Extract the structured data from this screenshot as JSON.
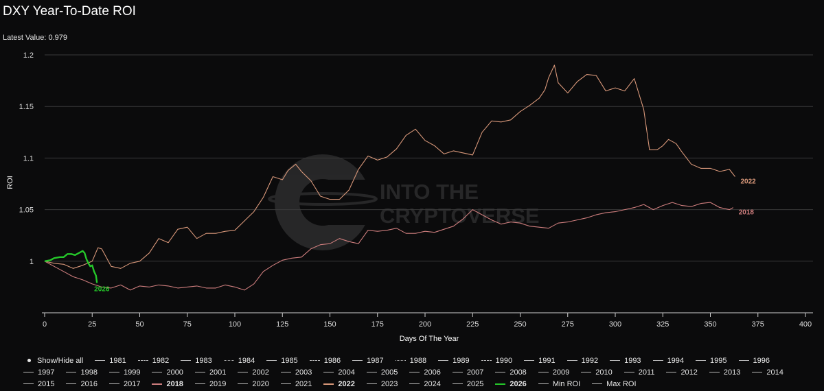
{
  "header": {
    "title": "DXY Year-To-Date ROI",
    "latest_value": "Latest Value: 0.979"
  },
  "watermark": {
    "line1": "INTO THE",
    "line2": "CRYPTOVERSE"
  },
  "chart_data": {
    "type": "line",
    "title": "DXY Year-To-Date ROI",
    "xlabel": "Days Of The Year",
    "ylabel": "ROI",
    "xlim": [
      0,
      400
    ],
    "ylim": [
      0.95,
      1.2
    ],
    "x_ticks": [
      "0",
      "25",
      "50",
      "75",
      "100",
      "125",
      "150",
      "175",
      "200",
      "225",
      "250",
      "275",
      "300",
      "325",
      "350",
      "375",
      "400"
    ],
    "y_ticks": [
      "1",
      "1.05",
      "1.1",
      "1.15",
      "1.2"
    ],
    "grid": "horizontal",
    "legend_position": "bottom",
    "series": [
      {
        "name": "2022",
        "color": "#d9987a",
        "label": "2022",
        "points": [
          [
            0,
            1.0
          ],
          [
            5,
            0.998
          ],
          [
            10,
            0.997
          ],
          [
            15,
            0.993
          ],
          [
            20,
            0.996
          ],
          [
            25,
            1.0
          ],
          [
            28,
            1.013
          ],
          [
            30,
            1.012
          ],
          [
            35,
            0.995
          ],
          [
            40,
            0.993
          ],
          [
            45,
            0.998
          ],
          [
            50,
            1.0
          ],
          [
            55,
            1.008
          ],
          [
            60,
            1.022
          ],
          [
            65,
            1.018
          ],
          [
            70,
            1.031
          ],
          [
            75,
            1.033
          ],
          [
            80,
            1.022
          ],
          [
            85,
            1.027
          ],
          [
            90,
            1.027
          ],
          [
            95,
            1.029
          ],
          [
            100,
            1.03
          ],
          [
            105,
            1.039
          ],
          [
            110,
            1.048
          ],
          [
            115,
            1.062
          ],
          [
            120,
            1.082
          ],
          [
            125,
            1.079
          ],
          [
            128,
            1.088
          ],
          [
            132,
            1.094
          ],
          [
            135,
            1.087
          ],
          [
            140,
            1.078
          ],
          [
            145,
            1.063
          ],
          [
            150,
            1.06
          ],
          [
            155,
            1.06
          ],
          [
            160,
            1.069
          ],
          [
            165,
            1.089
          ],
          [
            170,
            1.102
          ],
          [
            175,
            1.098
          ],
          [
            180,
            1.101
          ],
          [
            185,
            1.109
          ],
          [
            190,
            1.122
          ],
          [
            195,
            1.128
          ],
          [
            200,
            1.117
          ],
          [
            205,
            1.112
          ],
          [
            210,
            1.104
          ],
          [
            215,
            1.107
          ],
          [
            220,
            1.105
          ],
          [
            225,
            1.103
          ],
          [
            230,
            1.125
          ],
          [
            235,
            1.136
          ],
          [
            240,
            1.135
          ],
          [
            245,
            1.137
          ],
          [
            250,
            1.145
          ],
          [
            255,
            1.151
          ],
          [
            260,
            1.158
          ],
          [
            263,
            1.166
          ],
          [
            265,
            1.178
          ],
          [
            268,
            1.19
          ],
          [
            270,
            1.173
          ],
          [
            275,
            1.163
          ],
          [
            280,
            1.174
          ],
          [
            285,
            1.181
          ],
          [
            290,
            1.18
          ],
          [
            295,
            1.165
          ],
          [
            300,
            1.168
          ],
          [
            305,
            1.165
          ],
          [
            310,
            1.177
          ],
          [
            315,
            1.147
          ],
          [
            318,
            1.108
          ],
          [
            322,
            1.108
          ],
          [
            325,
            1.112
          ],
          [
            328,
            1.118
          ],
          [
            332,
            1.114
          ],
          [
            335,
            1.106
          ],
          [
            340,
            1.094
          ],
          [
            345,
            1.09
          ],
          [
            350,
            1.09
          ],
          [
            355,
            1.087
          ],
          [
            360,
            1.089
          ],
          [
            363,
            1.082
          ]
        ]
      },
      {
        "name": "2018",
        "color": "#cf7e7e",
        "label": "2018",
        "points": [
          [
            0,
            1.0
          ],
          [
            5,
            0.995
          ],
          [
            10,
            0.99
          ],
          [
            15,
            0.985
          ],
          [
            20,
            0.982
          ],
          [
            25,
            0.978
          ],
          [
            30,
            0.975
          ],
          [
            35,
            0.974
          ],
          [
            40,
            0.977
          ],
          [
            45,
            0.972
          ],
          [
            50,
            0.976
          ],
          [
            55,
            0.975
          ],
          [
            60,
            0.977
          ],
          [
            65,
            0.976
          ],
          [
            70,
            0.974
          ],
          [
            75,
            0.975
          ],
          [
            80,
            0.976
          ],
          [
            85,
            0.974
          ],
          [
            90,
            0.974
          ],
          [
            95,
            0.977
          ],
          [
            100,
            0.975
          ],
          [
            105,
            0.972
          ],
          [
            110,
            0.978
          ],
          [
            115,
            0.99
          ],
          [
            120,
            0.996
          ],
          [
            125,
            1.001
          ],
          [
            130,
            1.003
          ],
          [
            135,
            1.004
          ],
          [
            140,
            1.012
          ],
          [
            145,
            1.016
          ],
          [
            150,
            1.017
          ],
          [
            155,
            1.022
          ],
          [
            160,
            1.019
          ],
          [
            165,
            1.017
          ],
          [
            170,
            1.03
          ],
          [
            175,
            1.029
          ],
          [
            180,
            1.03
          ],
          [
            185,
            1.032
          ],
          [
            190,
            1.027
          ],
          [
            195,
            1.027
          ],
          [
            200,
            1.029
          ],
          [
            205,
            1.028
          ],
          [
            210,
            1.031
          ],
          [
            215,
            1.034
          ],
          [
            220,
            1.041
          ],
          [
            225,
            1.05
          ],
          [
            230,
            1.045
          ],
          [
            235,
            1.04
          ],
          [
            240,
            1.036
          ],
          [
            245,
            1.038
          ],
          [
            250,
            1.037
          ],
          [
            255,
            1.034
          ],
          [
            260,
            1.033
          ],
          [
            265,
            1.032
          ],
          [
            270,
            1.037
          ],
          [
            275,
            1.038
          ],
          [
            280,
            1.04
          ],
          [
            285,
            1.042
          ],
          [
            290,
            1.045
          ],
          [
            295,
            1.047
          ],
          [
            300,
            1.048
          ],
          [
            305,
            1.05
          ],
          [
            310,
            1.052
          ],
          [
            315,
            1.055
          ],
          [
            320,
            1.05
          ],
          [
            325,
            1.054
          ],
          [
            330,
            1.057
          ],
          [
            335,
            1.054
          ],
          [
            340,
            1.053
          ],
          [
            345,
            1.056
          ],
          [
            350,
            1.057
          ],
          [
            355,
            1.052
          ],
          [
            360,
            1.05
          ],
          [
            362,
            1.052
          ]
        ]
      },
      {
        "name": "2026",
        "color": "#25c82a",
        "label": "2026",
        "points": [
          [
            0,
            1.0
          ],
          [
            3,
            1.001
          ],
          [
            5,
            1.003
          ],
          [
            8,
            1.004
          ],
          [
            10,
            1.004
          ],
          [
            12,
            1.007
          ],
          [
            14,
            1.007
          ],
          [
            16,
            1.006
          ],
          [
            18,
            1.008
          ],
          [
            20,
            1.01
          ],
          [
            21,
            1.008
          ],
          [
            22,
            1.002
          ],
          [
            23,
            0.998
          ],
          [
            24,
            0.995
          ],
          [
            25,
            0.996
          ],
          [
            26,
            0.99
          ],
          [
            27,
            0.986
          ],
          [
            27.5,
            0.979
          ]
        ]
      }
    ]
  },
  "legend": {
    "show_hide_all": "Show/Hide all",
    "rows": [
      [
        {
          "label": "1981",
          "style": "solid"
        },
        {
          "label": "1982",
          "style": "dash"
        },
        {
          "label": "1983",
          "style": "solid"
        },
        {
          "label": "1984",
          "style": "dot"
        },
        {
          "label": "1985",
          "style": "solid"
        },
        {
          "label": "1986",
          "style": "dash"
        },
        {
          "label": "1987",
          "style": "solid"
        },
        {
          "label": "1988",
          "style": "dot"
        },
        {
          "label": "1989",
          "style": "solid"
        },
        {
          "label": "1990",
          "style": "dash"
        },
        {
          "label": "1991",
          "style": "solid"
        },
        {
          "label": "1992",
          "style": "solid"
        },
        {
          "label": "1993",
          "style": "solid"
        },
        {
          "label": "1994",
          "style": "solid"
        },
        {
          "label": "1995",
          "style": "solid"
        },
        {
          "label": "1996",
          "style": "solid"
        }
      ],
      [
        {
          "label": "1997",
          "style": "solid"
        },
        {
          "label": "1998",
          "style": "solid"
        },
        {
          "label": "1999",
          "style": "solid"
        },
        {
          "label": "2000",
          "style": "solid"
        },
        {
          "label": "2001",
          "style": "solid"
        },
        {
          "label": "2002",
          "style": "solid"
        },
        {
          "label": "2003",
          "style": "solid"
        },
        {
          "label": "2004",
          "style": "solid"
        },
        {
          "label": "2005",
          "style": "solid"
        },
        {
          "label": "2006",
          "style": "solid"
        },
        {
          "label": "2007",
          "style": "solid"
        },
        {
          "label": "2008",
          "style": "solid"
        },
        {
          "label": "2009",
          "style": "solid"
        },
        {
          "label": "2010",
          "style": "solid"
        },
        {
          "label": "2011",
          "style": "solid"
        },
        {
          "label": "2012",
          "style": "solid"
        },
        {
          "label": "2013",
          "style": "solid"
        },
        {
          "label": "2014",
          "style": "solid"
        }
      ],
      [
        {
          "label": "2015",
          "style": "solid"
        },
        {
          "label": "2016",
          "style": "solid"
        },
        {
          "label": "2017",
          "style": "solid"
        },
        {
          "label": "2018",
          "style": "solid",
          "color": "#cf7e7e",
          "bold": true
        },
        {
          "label": "2019",
          "style": "solid"
        },
        {
          "label": "2020",
          "style": "solid"
        },
        {
          "label": "2021",
          "style": "solid"
        },
        {
          "label": "2022",
          "style": "solid",
          "color": "#d9987a",
          "bold": true
        },
        {
          "label": "2023",
          "style": "solid"
        },
        {
          "label": "2024",
          "style": "solid"
        },
        {
          "label": "2025",
          "style": "solid"
        },
        {
          "label": "2026",
          "style": "solid",
          "color": "#25c82a",
          "bold": true
        },
        {
          "label": "Min ROI",
          "style": "solid"
        },
        {
          "label": "Max ROI",
          "style": "solid"
        }
      ]
    ]
  }
}
